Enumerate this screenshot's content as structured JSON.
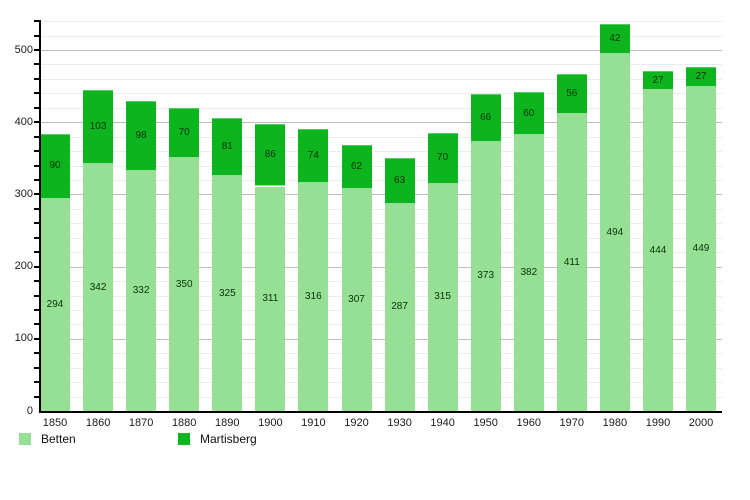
{
  "chart_data": {
    "type": "bar",
    "stacked": true,
    "title": "",
    "xlabel": "",
    "ylabel": "",
    "categories": [
      "1850",
      "1860",
      "1870",
      "1880",
      "1890",
      "1900",
      "1910",
      "1920",
      "1930",
      "1940",
      "1950",
      "1960",
      "1970",
      "1980",
      "1990",
      "2000"
    ],
    "series": [
      {
        "name": "Betten",
        "color": "#96E096",
        "values": [
          294,
          342,
          332,
          350,
          325,
          311,
          316,
          307,
          287,
          315,
          373,
          382,
          411,
          494,
          444,
          449
        ]
      },
      {
        "name": "Martisberg",
        "color": "#0CB41E",
        "values": [
          90,
          103,
          98,
          70,
          81,
          86,
          74,
          62,
          63,
          70,
          66,
          60,
          56,
          42,
          27,
          27
        ]
      }
    ],
    "totals": [
      384,
      445,
      430,
      420,
      406,
      397,
      390,
      369,
      350,
      385,
      439,
      442,
      467,
      536,
      471,
      476
    ],
    "ylim": [
      0,
      541
    ],
    "yticks": [
      0,
      100,
      200,
      300,
      400,
      500
    ],
    "ytick_minor_step": 20,
    "grid": true,
    "data_labels": true,
    "legend_position": "bottom-left"
  },
  "legend": {
    "items": [
      {
        "label": "Betten",
        "color": "#96E096"
      },
      {
        "label": "Martisberg",
        "color": "#0CB41E"
      }
    ]
  }
}
